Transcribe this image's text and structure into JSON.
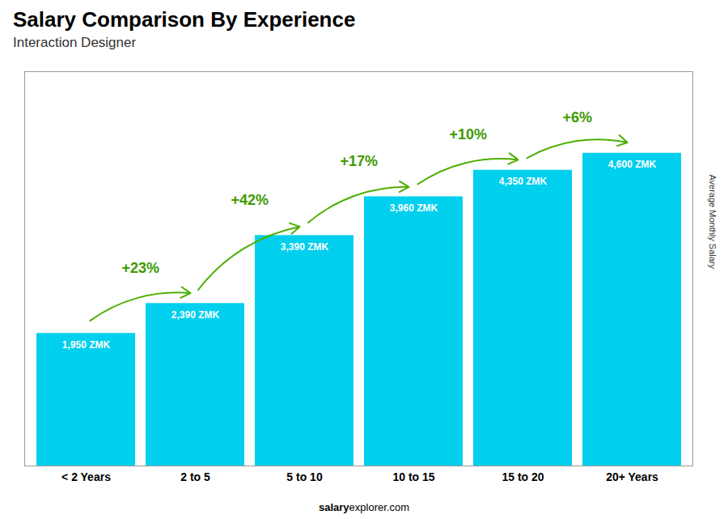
{
  "chart_data": {
    "type": "bar",
    "title": "Salary Comparison By Experience",
    "subtitle": "Interaction Designer",
    "ylabel": "Average Monthly Salary",
    "categories": [
      "< 2 Years",
      "2 to 5",
      "5 to 10",
      "10 to 15",
      "15 to 20",
      "20+ Years"
    ],
    "values": [
      1950,
      2390,
      3390,
      3960,
      4350,
      4600
    ],
    "value_labels": [
      "1,950 ZMK",
      "2,390 ZMK",
      "3,390 ZMK",
      "3,960 ZMK",
      "4,350 ZMK",
      "4,600 ZMK"
    ],
    "data_labels": true,
    "annotations": [
      "+23%",
      "+42%",
      "+17%",
      "+10%",
      "+6%"
    ],
    "footer": [
      "salary",
      "explorer.com"
    ],
    "color": "#00CFEE",
    "ylim": [
      0,
      5800
    ],
    "grid": false,
    "tick_labels": "x"
  }
}
